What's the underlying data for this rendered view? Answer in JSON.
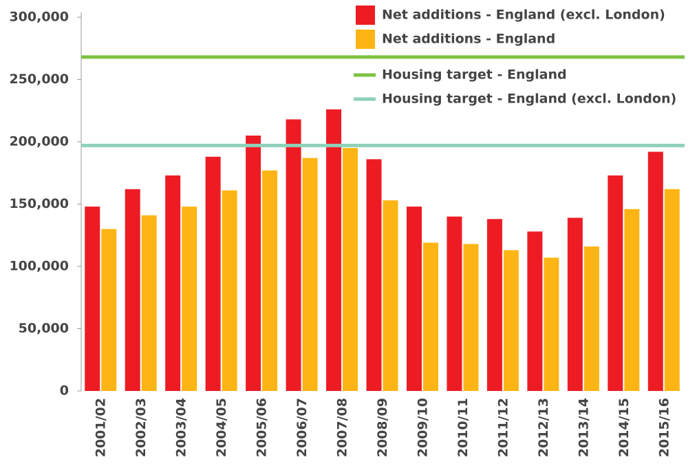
{
  "chart_data": {
    "type": "bar",
    "categories": [
      "2001/02",
      "2002/03",
      "2003/04",
      "2004/05",
      "2005/06",
      "2006/07",
      "2007/08",
      "2008/09",
      "2009/10",
      "2010/11",
      "2011/12",
      "2012/13",
      "2013/14",
      "2014/15",
      "2015/16"
    ],
    "series": [
      {
        "name": "Net additions - England (excl. London)",
        "kind": "bar",
        "color": "#ed1c24",
        "values": [
          148000,
          162000,
          173000,
          188000,
          205000,
          218000,
          226000,
          186000,
          148000,
          140000,
          138000,
          128000,
          139000,
          173000,
          192000
        ]
      },
      {
        "name": "Net additions - England",
        "kind": "bar",
        "color": "#fdb515",
        "values": [
          130000,
          141000,
          148000,
          161000,
          177000,
          187000,
          195000,
          153000,
          119000,
          118000,
          113000,
          107000,
          116000,
          146000,
          162000
        ]
      },
      {
        "name": "Housing target - England",
        "kind": "hline",
        "color": "#7dc242",
        "value": 268000
      },
      {
        "name": "Housing target - England (excl. London)",
        "kind": "hline",
        "color": "#8ed1b8",
        "value": 197000
      }
    ],
    "ylim": [
      0,
      300000
    ],
    "yticks": [
      0,
      {
        "value": 50000,
        "label": "50,000"
      },
      {
        "value": 100000,
        "label": "100,000"
      },
      {
        "value": 150000,
        "label": "150,000"
      },
      {
        "value": 200000,
        "label": "200,000"
      },
      {
        "value": 250000,
        "label": "250,000"
      },
      {
        "value": 300000,
        "label": "300,000"
      }
    ],
    "legend": "top-right"
  }
}
